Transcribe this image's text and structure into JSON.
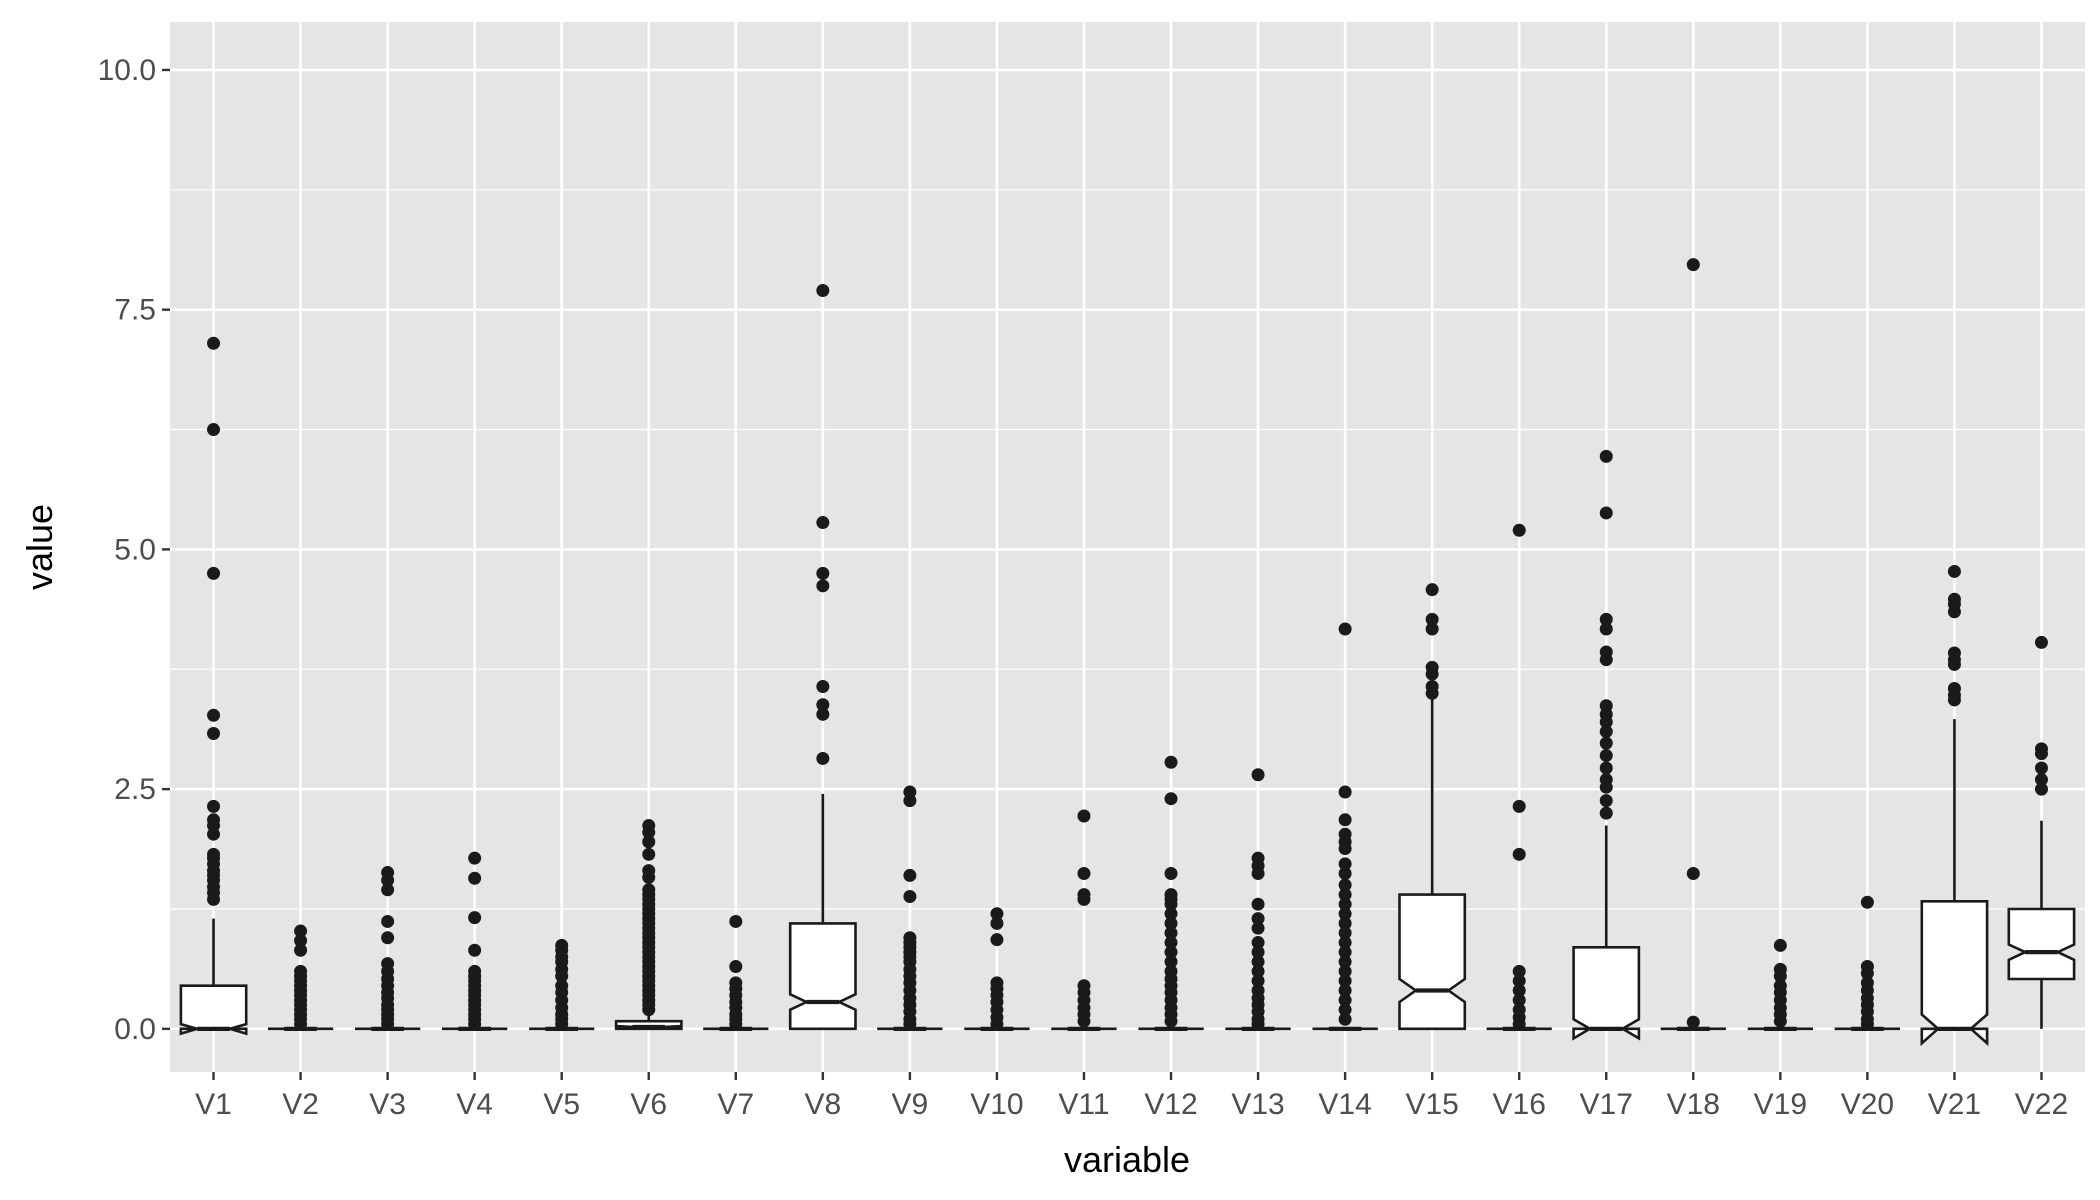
{
  "chart_data": {
    "type": "boxplot",
    "notched": true,
    "xlabel": "variable",
    "ylabel": "value",
    "ylim": [
      -0.45,
      10.5
    ],
    "yticks": [
      0.0,
      2.5,
      5.0,
      7.5,
      10.0
    ],
    "ytick_labels": [
      "0.0",
      "2.5",
      "5.0",
      "7.5",
      "10.0"
    ],
    "grid": true,
    "legend": "none",
    "colors": {
      "panel": "#e5e5e5",
      "grid": "#ffffff",
      "box_fill": "#ffffff",
      "box_line": "#1a1a1a",
      "point": "#1a1a1a"
    },
    "categories": [
      "V1",
      "V2",
      "V3",
      "V4",
      "V5",
      "V6",
      "V7",
      "V8",
      "V9",
      "V10",
      "V11",
      "V12",
      "V13",
      "V14",
      "V15",
      "V16",
      "V17",
      "V18",
      "V19",
      "V20",
      "V21",
      "V22"
    ],
    "boxes": [
      {
        "lower": 0,
        "q1": 0,
        "median": 0,
        "q3": 0.45,
        "upper": 1.15,
        "notch_lo": -0.05,
        "notch_hi": 0.05,
        "outliers": [
          7.15,
          6.25,
          4.75,
          3.27,
          3.08,
          2.32,
          2.18,
          2.12,
          2.03,
          1.82,
          1.78,
          1.72,
          1.65,
          1.6,
          1.55,
          1.48,
          1.42,
          1.35
        ]
      },
      {
        "lower": 0,
        "q1": 0,
        "median": 0,
        "q3": 0,
        "upper": 0,
        "notch_lo": 0,
        "notch_hi": 0,
        "outliers": [
          1.02,
          0.92,
          0.82,
          0.6,
          0.55,
          0.5,
          0.45,
          0.4,
          0.35,
          0.3,
          0.25,
          0.2,
          0.15,
          0.1,
          0.05
        ]
      },
      {
        "lower": 0,
        "q1": 0,
        "median": 0,
        "q3": 0,
        "upper": 0,
        "notch_lo": 0,
        "notch_hi": 0,
        "outliers": [
          1.63,
          1.55,
          1.45,
          1.12,
          0.95,
          0.68,
          0.6,
          0.52,
          0.45,
          0.38,
          0.32,
          0.25,
          0.2,
          0.15,
          0.1,
          0.05
        ]
      },
      {
        "lower": 0,
        "q1": 0,
        "median": 0,
        "q3": 0,
        "upper": 0,
        "notch_lo": 0,
        "notch_hi": 0,
        "outliers": [
          1.78,
          1.57,
          1.16,
          0.82,
          0.6,
          0.55,
          0.5,
          0.45,
          0.4,
          0.35,
          0.3,
          0.25,
          0.2,
          0.15,
          0.1,
          0.05
        ]
      },
      {
        "lower": 0,
        "q1": 0,
        "median": 0,
        "q3": 0,
        "upper": 0,
        "notch_lo": 0,
        "notch_hi": 0,
        "outliers": [
          0.87,
          0.82,
          0.75,
          0.7,
          0.62,
          0.55,
          0.45,
          0.38,
          0.3,
          0.22,
          0.15,
          0.1,
          0.05
        ]
      },
      {
        "lower": 0,
        "q1": 0,
        "median": 0.02,
        "q3": 0.08,
        "upper": 0.18,
        "notch_lo": 0.01,
        "notch_hi": 0.03,
        "outliers": [
          2.12,
          2.05,
          1.95,
          1.82,
          1.65,
          1.58,
          1.45,
          1.4,
          1.35,
          1.3,
          1.25,
          1.2,
          1.15,
          1.1,
          1.05,
          1.0,
          0.95,
          0.9,
          0.85,
          0.8,
          0.75,
          0.7,
          0.65,
          0.6,
          0.55,
          0.5,
          0.45,
          0.4,
          0.35,
          0.3,
          0.25,
          0.2
        ]
      },
      {
        "lower": 0,
        "q1": 0,
        "median": 0,
        "q3": 0,
        "upper": 0,
        "notch_lo": 0,
        "notch_hi": 0,
        "outliers": [
          1.12,
          0.65,
          0.48,
          0.42,
          0.35,
          0.28,
          0.22,
          0.15,
          0.1,
          0.05
        ]
      },
      {
        "lower": 0,
        "q1": 0,
        "median": 0.28,
        "q3": 1.1,
        "upper": 2.45,
        "notch_lo": 0.2,
        "notch_hi": 0.36,
        "outliers": [
          7.7,
          5.28,
          4.75,
          4.62,
          3.57,
          3.38,
          3.28,
          2.82
        ]
      },
      {
        "lower": 0,
        "q1": 0,
        "median": 0,
        "q3": 0,
        "upper": 0,
        "notch_lo": 0,
        "notch_hi": 0,
        "outliers": [
          2.47,
          2.38,
          1.6,
          1.38,
          0.95,
          0.9,
          0.85,
          0.8,
          0.75,
          0.7,
          0.62,
          0.55,
          0.48,
          0.4,
          0.32,
          0.25,
          0.18,
          0.1,
          0.05
        ]
      },
      {
        "lower": 0,
        "q1": 0,
        "median": 0,
        "q3": 0,
        "upper": 0,
        "notch_lo": 0,
        "notch_hi": 0,
        "outliers": [
          1.2,
          1.1,
          0.93,
          0.48,
          0.42,
          0.35,
          0.28,
          0.2,
          0.12,
          0.05
        ]
      },
      {
        "lower": 0,
        "q1": 0,
        "median": 0,
        "q3": 0,
        "upper": 0,
        "notch_lo": 0,
        "notch_hi": 0,
        "outliers": [
          2.22,
          1.62,
          1.4,
          1.35,
          0.45,
          0.38,
          0.3,
          0.22,
          0.15,
          0.08
        ]
      },
      {
        "lower": 0,
        "q1": 0,
        "median": 0,
        "q3": 0,
        "upper": 0,
        "notch_lo": 0,
        "notch_hi": 0,
        "outliers": [
          2.78,
          2.4,
          1.62,
          1.4,
          1.35,
          1.3,
          1.2,
          1.1,
          1.0,
          0.9,
          0.8,
          0.7,
          0.6,
          0.52,
          0.45,
          0.38,
          0.3,
          0.22,
          0.15,
          0.08
        ]
      },
      {
        "lower": 0,
        "q1": 0,
        "median": 0,
        "q3": 0,
        "upper": 0,
        "notch_lo": 0,
        "notch_hi": 0,
        "outliers": [
          2.65,
          1.78,
          1.7,
          1.62,
          1.3,
          1.15,
          1.05,
          0.9,
          0.8,
          0.7,
          0.6,
          0.5,
          0.4,
          0.32,
          0.25,
          0.18,
          0.1,
          0.05
        ]
      },
      {
        "lower": 0,
        "q1": 0,
        "median": 0,
        "q3": 0,
        "upper": 0,
        "notch_lo": 0,
        "notch_hi": 0,
        "outliers": [
          4.17,
          2.47,
          2.18,
          2.03,
          1.95,
          1.88,
          1.72,
          1.62,
          1.5,
          1.4,
          1.3,
          1.2,
          1.1,
          1.0,
          0.9,
          0.8,
          0.7,
          0.6,
          0.5,
          0.4,
          0.3,
          0.2,
          0.1
        ]
      },
      {
        "lower": 0,
        "q1": 0,
        "median": 0.4,
        "q3": 1.4,
        "upper": 3.45,
        "notch_lo": 0.28,
        "notch_hi": 0.52,
        "outliers": [
          4.58,
          4.27,
          4.17,
          3.77,
          3.7,
          3.57,
          3.5
        ]
      },
      {
        "lower": 0,
        "q1": 0,
        "median": 0,
        "q3": 0,
        "upper": 0,
        "notch_lo": 0,
        "notch_hi": 0,
        "outliers": [
          5.2,
          2.32,
          1.82,
          0.6,
          0.5,
          0.4,
          0.3,
          0.2,
          0.12,
          0.05
        ]
      },
      {
        "lower": 0,
        "q1": 0,
        "median": 0,
        "q3": 0.85,
        "upper": 2.12,
        "notch_lo": -0.1,
        "notch_hi": 0.1,
        "outliers": [
          5.97,
          5.38,
          4.27,
          4.17,
          3.93,
          3.85,
          3.37,
          3.28,
          3.2,
          3.1,
          2.98,
          2.85,
          2.72,
          2.6,
          2.52,
          2.38,
          2.25
        ]
      },
      {
        "lower": 0,
        "q1": 0,
        "median": 0,
        "q3": 0,
        "upper": 0,
        "notch_lo": 0,
        "notch_hi": 0,
        "outliers": [
          7.97,
          1.62,
          0.07
        ]
      },
      {
        "lower": 0,
        "q1": 0,
        "median": 0,
        "q3": 0,
        "upper": 0,
        "notch_lo": 0,
        "notch_hi": 0,
        "outliers": [
          0.87,
          0.62,
          0.55,
          0.45,
          0.38,
          0.3,
          0.22,
          0.15,
          0.08
        ]
      },
      {
        "lower": 0,
        "q1": 0,
        "median": 0,
        "q3": 0,
        "upper": 0,
        "notch_lo": 0,
        "notch_hi": 0,
        "outliers": [
          1.32,
          0.65,
          0.58,
          0.48,
          0.4,
          0.32,
          0.25,
          0.18,
          0.1,
          0.05
        ]
      },
      {
        "lower": 0,
        "q1": 0,
        "median": 0,
        "q3": 1.33,
        "upper": 3.23,
        "notch_lo": -0.15,
        "notch_hi": 0.15,
        "outliers": [
          4.77,
          4.48,
          4.43,
          4.35,
          3.92,
          3.85,
          3.8,
          3.55,
          3.48,
          3.43
        ]
      },
      {
        "lower": 0,
        "q1": 0.52,
        "median": 0.8,
        "q3": 1.25,
        "upper": 2.17,
        "notch_lo": 0.72,
        "notch_hi": 0.88,
        "outliers": [
          4.03,
          2.92,
          2.87,
          2.72,
          2.6,
          2.5
        ]
      }
    ]
  }
}
